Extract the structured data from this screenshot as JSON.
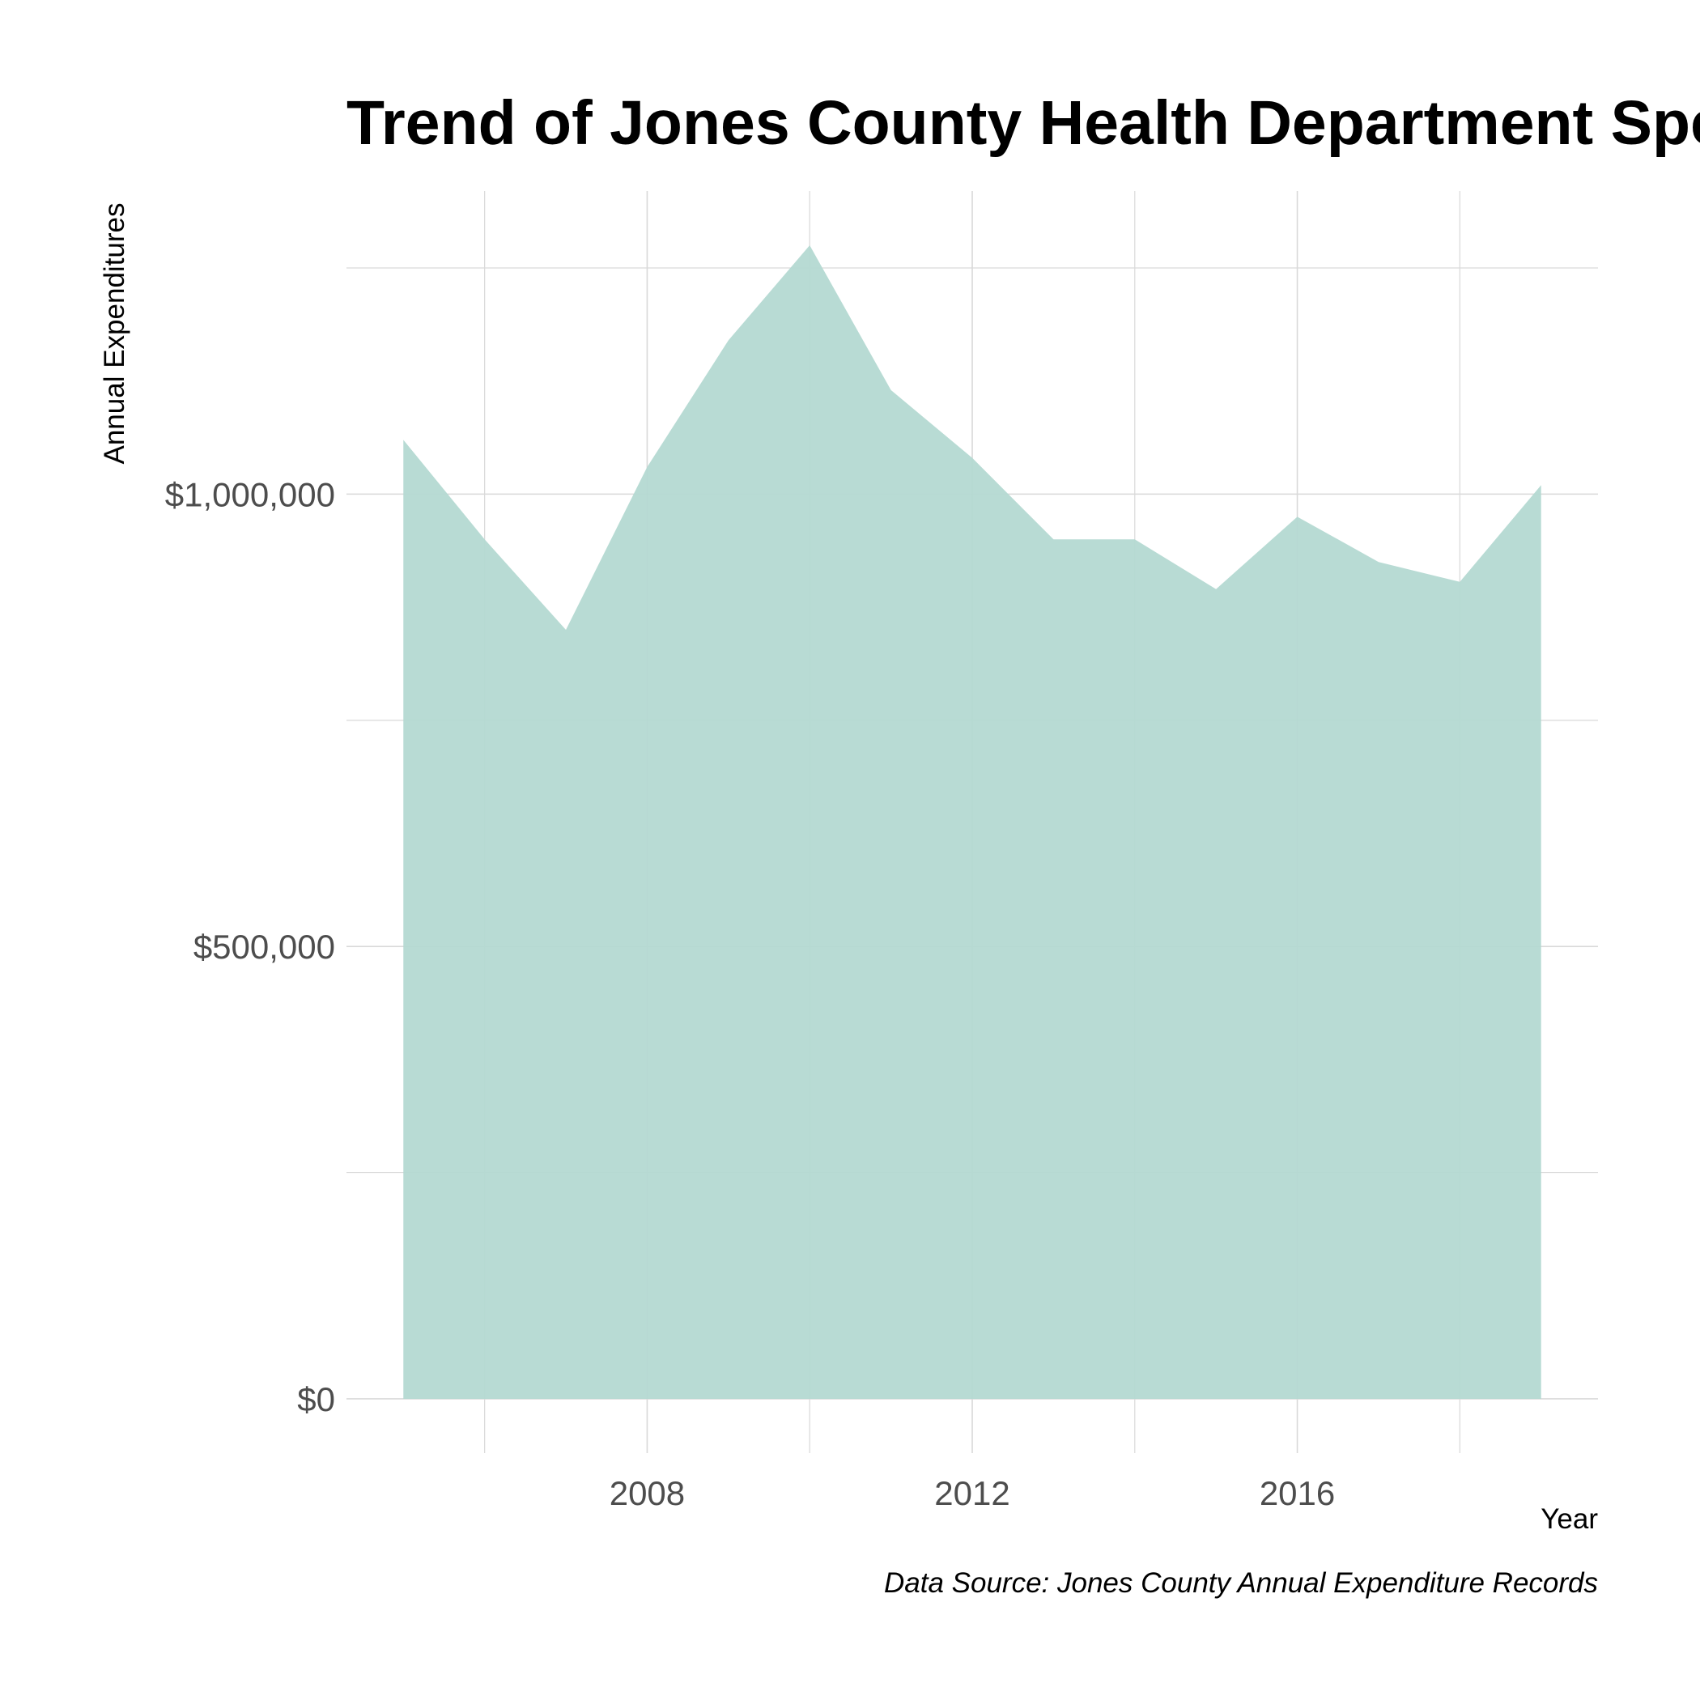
{
  "chart_data": {
    "type": "area",
    "title": "Trend of Jones County Health Department Spending",
    "xlabel": "Year",
    "ylabel": "Annual Expenditures",
    "caption": "Data Source: Jones County Annual Expenditure Records",
    "x": [
      2005,
      2006,
      2007,
      2008,
      2009,
      2010,
      2011,
      2012,
      2013,
      2014,
      2015,
      2016,
      2017,
      2018,
      2019
    ],
    "series": [
      {
        "values": [
          1060000,
          950000,
          850000,
          1030000,
          1170000,
          1275000,
          1115000,
          1040000,
          950000,
          950000,
          895000,
          975000,
          925000,
          903000,
          1010000
        ]
      }
    ],
    "xlim": [
      2004.3,
      2019.7
    ],
    "ylim": [
      -60000,
      1335000
    ],
    "x_ticks": [
      2008,
      2012,
      2016
    ],
    "x_tick_labels": [
      "2008",
      "2012",
      "2016"
    ],
    "y_ticks": [
      0,
      500000,
      1000000
    ],
    "y_tick_labels": [
      "$0",
      "$500,000",
      "$1,000,000"
    ],
    "grid": true,
    "fill_color": "#b4d9d2",
    "grid_color": "#d9d9d9"
  }
}
